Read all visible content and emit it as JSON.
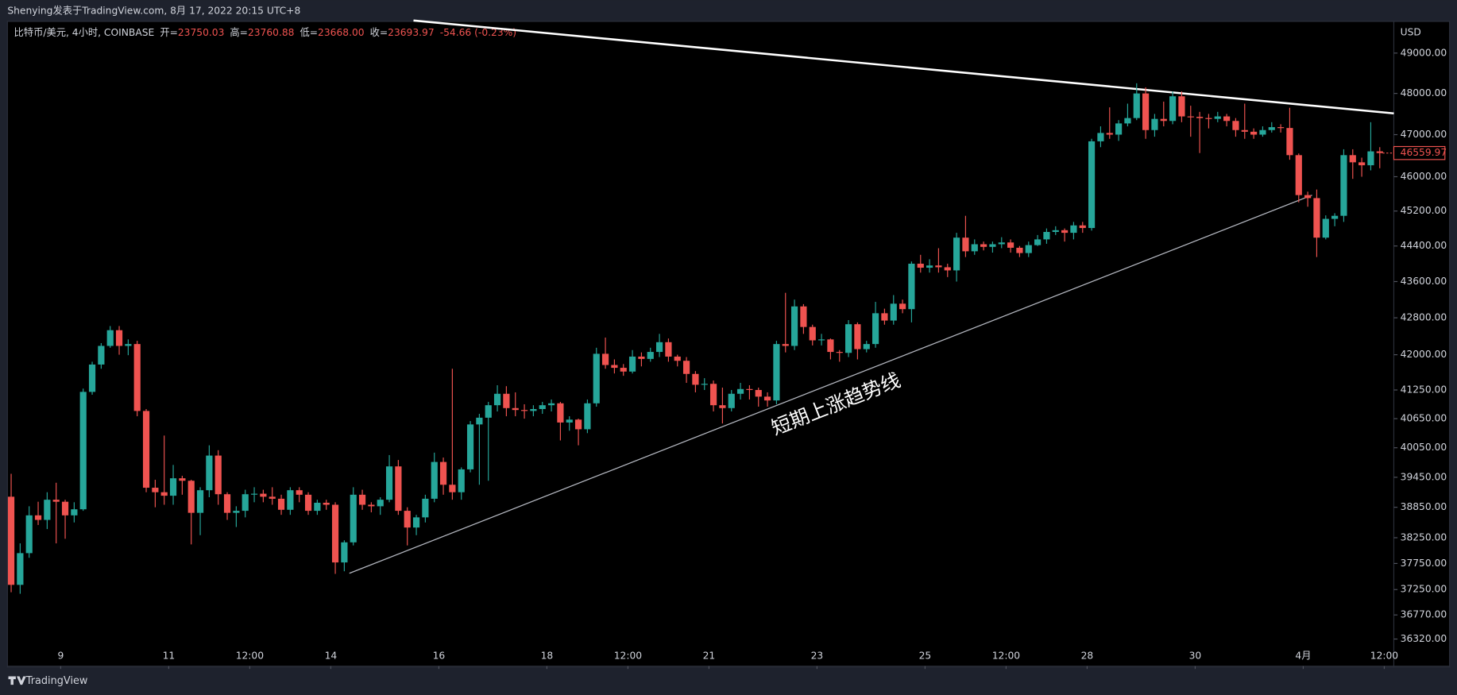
{
  "header": {
    "text": "Shenying发表于TradingView.com, 8月 17, 2022 20:15 UTC+8"
  },
  "legend": {
    "symbol": "比特币/美元, 4小时, COINBASE",
    "fields": [
      {
        "label": "开=",
        "value": "23750.03"
      },
      {
        "label": "高=",
        "value": "23760.88"
      },
      {
        "label": "低=",
        "value": "23668.00"
      },
      {
        "label": "收=",
        "value": "23693.97"
      }
    ],
    "change": "-54.66 (-0.23%)"
  },
  "footer": {
    "brand": "TradingView"
  },
  "chart_data": {
    "type": "candlestick",
    "currency": "USD",
    "log": true,
    "grid": false,
    "up_color": "#26a69a",
    "down_color": "#ef5350",
    "annotation": "短期上涨趋势线",
    "last_price": 46559.97,
    "ylim": [
      35820,
      49800
    ],
    "yticks": [
      {
        "value": 49000,
        "label": "49000.00"
      },
      {
        "value": 48000,
        "label": "48000.00"
      },
      {
        "value": 47000,
        "label": "47000.00"
      },
      {
        "value": 46000,
        "label": "46000.00"
      },
      {
        "value": 45200,
        "label": "45200.00"
      },
      {
        "value": 44400,
        "label": "44400.00"
      },
      {
        "value": 43600,
        "label": "43600.00"
      },
      {
        "value": 42800,
        "label": "42800.00"
      },
      {
        "value": 42000,
        "label": "42000.00"
      },
      {
        "value": 41250,
        "label": "41250.00"
      },
      {
        "value": 40650,
        "label": "40650.00"
      },
      {
        "value": 40050,
        "label": "40050.00"
      },
      {
        "value": 39450,
        "label": "39450.00"
      },
      {
        "value": 38850,
        "label": "38850.00"
      },
      {
        "value": 38250,
        "label": "38250.00"
      },
      {
        "value": 37750,
        "label": "37750.00"
      },
      {
        "value": 37250,
        "label": "37250.00"
      },
      {
        "value": 36770,
        "label": "36770.00"
      },
      {
        "value": 36320,
        "label": "36320.00"
      }
    ],
    "xticks": [
      {
        "value": 5.5,
        "label": "9"
      },
      {
        "value": 17.5,
        "label": "11"
      },
      {
        "value": 26.5,
        "label": "12:00"
      },
      {
        "value": 35.5,
        "label": "14"
      },
      {
        "value": 47.5,
        "label": "16"
      },
      {
        "value": 59.5,
        "label": "18"
      },
      {
        "value": 68.5,
        "label": "12:00"
      },
      {
        "value": 77.5,
        "label": "21"
      },
      {
        "value": 89.5,
        "label": "23"
      },
      {
        "value": 101.5,
        "label": "25"
      },
      {
        "value": 110.5,
        "label": "12:00"
      },
      {
        "value": 119.5,
        "label": "28"
      },
      {
        "value": 131.5,
        "label": "30"
      },
      {
        "value": 143.5,
        "label": "4月"
      },
      {
        "value": 152.5,
        "label": "12:00"
      }
    ],
    "candles": [
      [
        39060,
        39520,
        37200,
        37340
      ],
      [
        37340,
        38140,
        37170,
        37950
      ],
      [
        37950,
        38870,
        37860,
        38690
      ],
      [
        38690,
        38960,
        38500,
        38600
      ],
      [
        38600,
        39150,
        38420,
        39000
      ],
      [
        39000,
        39340,
        38140,
        38960
      ],
      [
        38960,
        39000,
        38230,
        38690
      ],
      [
        38690,
        38950,
        38550,
        38810
      ],
      [
        38810,
        41280,
        38780,
        41210
      ],
      [
        41210,
        41850,
        41150,
        41790
      ],
      [
        41790,
        42250,
        41700,
        42190
      ],
      [
        42190,
        42620,
        42150,
        42530
      ],
      [
        42530,
        42620,
        42000,
        42190
      ],
      [
        42190,
        42330,
        41990,
        42230
      ],
      [
        42230,
        42300,
        40700,
        40810
      ],
      [
        40810,
        40850,
        39150,
        39240
      ],
      [
        39240,
        39400,
        38850,
        39150
      ],
      [
        39150,
        40300,
        38900,
        39080
      ],
      [
        39080,
        39700,
        38900,
        39430
      ],
      [
        39430,
        39480,
        39100,
        39380
      ],
      [
        39380,
        39400,
        38120,
        38740
      ],
      [
        38740,
        39250,
        38300,
        39190
      ],
      [
        39190,
        40100,
        39050,
        39890
      ],
      [
        39890,
        40000,
        38900,
        39110
      ],
      [
        39110,
        39150,
        38600,
        38740
      ],
      [
        38740,
        38870,
        38460,
        38780
      ],
      [
        38780,
        39200,
        38650,
        39110
      ],
      [
        39110,
        39250,
        38950,
        39120
      ],
      [
        39120,
        39200,
        38950,
        39060
      ],
      [
        39060,
        39250,
        38900,
        39020
      ],
      [
        39020,
        39100,
        38700,
        38800
      ],
      [
        38800,
        39250,
        38700,
        39190
      ],
      [
        39190,
        39250,
        38950,
        39100
      ],
      [
        39100,
        39150,
        38700,
        38780
      ],
      [
        38780,
        39000,
        38700,
        38940
      ],
      [
        38940,
        39000,
        38800,
        38900
      ],
      [
        38900,
        38950,
        37550,
        37770
      ],
      [
        37770,
        38200,
        37600,
        38160
      ],
      [
        38160,
        39250,
        38100,
        39100
      ],
      [
        39100,
        39200,
        38800,
        38900
      ],
      [
        38900,
        38950,
        38750,
        38870
      ],
      [
        38870,
        39050,
        38700,
        39000
      ],
      [
        39000,
        39900,
        38950,
        39670
      ],
      [
        39670,
        39800,
        38700,
        38780
      ],
      [
        38780,
        38850,
        38100,
        38450
      ],
      [
        38450,
        38700,
        38300,
        38650
      ],
      [
        38650,
        39100,
        38550,
        39020
      ],
      [
        39020,
        39950,
        38950,
        39760
      ],
      [
        39760,
        39850,
        39100,
        39300
      ],
      [
        39300,
        41700,
        39000,
        39150
      ],
      [
        39150,
        39650,
        39000,
        39610
      ],
      [
        39610,
        40600,
        39550,
        40530
      ],
      [
        40530,
        40750,
        39300,
        40670
      ],
      [
        40670,
        41000,
        39380,
        40930
      ],
      [
        40930,
        41350,
        40800,
        41170
      ],
      [
        41170,
        41330,
        40700,
        40870
      ],
      [
        40870,
        41200,
        40700,
        40830
      ],
      [
        40830,
        40950,
        40650,
        40810
      ],
      [
        40810,
        40930,
        40700,
        40850
      ],
      [
        40850,
        41000,
        40750,
        40930
      ],
      [
        40930,
        41050,
        40800,
        40970
      ],
      [
        40970,
        41000,
        40200,
        40570
      ],
      [
        40570,
        40700,
        40400,
        40630
      ],
      [
        40630,
        40650,
        40100,
        40430
      ],
      [
        40430,
        41050,
        40350,
        40970
      ],
      [
        40970,
        42150,
        40900,
        42020
      ],
      [
        42020,
        42370,
        41700,
        41780
      ],
      [
        41780,
        41900,
        41600,
        41720
      ],
      [
        41720,
        41800,
        41550,
        41640
      ],
      [
        41640,
        42100,
        41600,
        41960
      ],
      [
        41960,
        42050,
        41750,
        41910
      ],
      [
        41910,
        42150,
        41850,
        42060
      ],
      [
        42060,
        42450,
        41950,
        42270
      ],
      [
        42270,
        42350,
        41850,
        41960
      ],
      [
        41960,
        42000,
        41750,
        41870
      ],
      [
        41870,
        41950,
        41400,
        41590
      ],
      [
        41590,
        41650,
        41200,
        41360
      ],
      [
        41360,
        41500,
        41250,
        41380
      ],
      [
        41380,
        41450,
        40800,
        40930
      ],
      [
        40930,
        41300,
        40550,
        40870
      ],
      [
        40870,
        41250,
        40800,
        41170
      ],
      [
        41170,
        41400,
        41050,
        41270
      ],
      [
        41270,
        41350,
        41050,
        41250
      ],
      [
        41250,
        41300,
        40900,
        41110
      ],
      [
        41110,
        41200,
        40900,
        41030
      ],
      [
        41030,
        42300,
        40950,
        42230
      ],
      [
        42230,
        43350,
        42050,
        42190
      ],
      [
        42190,
        43200,
        42100,
        43050
      ],
      [
        43050,
        43100,
        42450,
        42600
      ],
      [
        42600,
        42650,
        42200,
        42310
      ],
      [
        42310,
        42450,
        42200,
        42330
      ],
      [
        42330,
        42350,
        41900,
        42060
      ],
      [
        42060,
        42100,
        41850,
        42040
      ],
      [
        42040,
        42750,
        41950,
        42660
      ],
      [
        42660,
        42700,
        41900,
        42120
      ],
      [
        42120,
        42300,
        42050,
        42230
      ],
      [
        42230,
        43150,
        42150,
        42900
      ],
      [
        42900,
        43000,
        42650,
        42740
      ],
      [
        42740,
        43300,
        42650,
        43110
      ],
      [
        43110,
        43200,
        42900,
        42990
      ],
      [
        42990,
        44050,
        42700,
        44000
      ],
      [
        44000,
        44200,
        43800,
        43910
      ],
      [
        43910,
        44100,
        43800,
        43960
      ],
      [
        43960,
        44350,
        43800,
        43920
      ],
      [
        43920,
        44000,
        43700,
        43850
      ],
      [
        43850,
        44700,
        43600,
        44590
      ],
      [
        44590,
        45090,
        44150,
        44280
      ],
      [
        44280,
        44550,
        44200,
        44440
      ],
      [
        44440,
        44500,
        44300,
        44380
      ],
      [
        44380,
        44500,
        44250,
        44440
      ],
      [
        44440,
        44600,
        44350,
        44480
      ],
      [
        44480,
        44550,
        44250,
        44360
      ],
      [
        44360,
        44400,
        44150,
        44240
      ],
      [
        44240,
        44500,
        44150,
        44420
      ],
      [
        44420,
        44650,
        44400,
        44550
      ],
      [
        44550,
        44800,
        44450,
        44720
      ],
      [
        44720,
        44850,
        44650,
        44760
      ],
      [
        44760,
        44800,
        44500,
        44700
      ],
      [
        44700,
        44950,
        44550,
        44870
      ],
      [
        44870,
        44950,
        44700,
        44810
      ],
      [
        44810,
        46900,
        44750,
        46840
      ],
      [
        46840,
        47200,
        46700,
        47040
      ],
      [
        47040,
        47660,
        46900,
        47000
      ],
      [
        47000,
        47350,
        46850,
        47270
      ],
      [
        47270,
        47750,
        47200,
        47400
      ],
      [
        47400,
        48250,
        47350,
        48000
      ],
      [
        48000,
        48150,
        46900,
        47110
      ],
      [
        47110,
        47500,
        46950,
        47380
      ],
      [
        47380,
        47800,
        47200,
        47330
      ],
      [
        47330,
        48050,
        47250,
        47930
      ],
      [
        47930,
        48050,
        47300,
        47440
      ],
      [
        47440,
        47700,
        46950,
        47430
      ],
      [
        47430,
        47550,
        46560,
        47400
      ],
      [
        47400,
        47500,
        47150,
        47380
      ],
      [
        47380,
        47550,
        47300,
        47440
      ],
      [
        47440,
        47500,
        47200,
        47330
      ],
      [
        47330,
        47400,
        46950,
        47110
      ],
      [
        47110,
        47750,
        46900,
        47070
      ],
      [
        47070,
        47150,
        46900,
        47000
      ],
      [
        47000,
        47200,
        46950,
        47110
      ],
      [
        47110,
        47300,
        47050,
        47180
      ],
      [
        47180,
        47250,
        47050,
        47160
      ],
      [
        47160,
        47650,
        46400,
        46510
      ],
      [
        46510,
        46550,
        45400,
        45570
      ],
      [
        45570,
        45650,
        45300,
        45500
      ],
      [
        45500,
        45700,
        44150,
        44590
      ],
      [
        44590,
        45100,
        44550,
        45020
      ],
      [
        45020,
        45150,
        44850,
        45090
      ],
      [
        45090,
        46650,
        44950,
        46510
      ],
      [
        46510,
        46650,
        45950,
        46340
      ],
      [
        46340,
        46450,
        46000,
        46270
      ],
      [
        46270,
        47300,
        46150,
        46600
      ],
      [
        46600,
        46700,
        46200,
        46560
      ]
    ]
  }
}
